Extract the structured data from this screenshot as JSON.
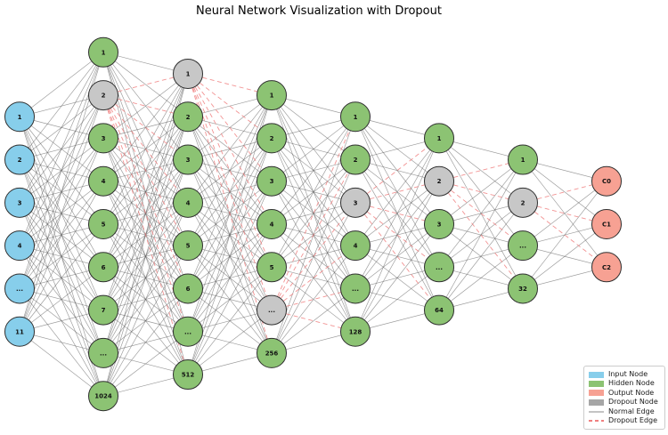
{
  "title": "Neural Network Visualization with Dropout",
  "colors": {
    "input_node": "#87CEEB",
    "hidden_node": "#8CC373",
    "output_node": "#F7A193",
    "dropout_node": "#C7C7C7",
    "node_border": "#2F2F2F",
    "normal_edge": "#5C5C5C",
    "dropout_edge": "#F08080"
  },
  "network": {
    "layers": [
      {
        "name": "input-layer",
        "nodes": [
          {
            "label": "1",
            "type": "input"
          },
          {
            "label": "2",
            "type": "input"
          },
          {
            "label": "3",
            "type": "input"
          },
          {
            "label": "4",
            "type": "input"
          },
          {
            "label": "...",
            "type": "input"
          },
          {
            "label": "11",
            "type": "input"
          }
        ]
      },
      {
        "name": "hidden-layer-1",
        "nodes": [
          {
            "label": "1",
            "type": "hidden"
          },
          {
            "label": "2",
            "type": "dropout"
          },
          {
            "label": "3",
            "type": "hidden"
          },
          {
            "label": "4",
            "type": "hidden"
          },
          {
            "label": "5",
            "type": "hidden"
          },
          {
            "label": "6",
            "type": "hidden"
          },
          {
            "label": "7",
            "type": "hidden"
          },
          {
            "label": "...",
            "type": "hidden"
          },
          {
            "label": "1024",
            "type": "hidden"
          }
        ]
      },
      {
        "name": "hidden-layer-2",
        "nodes": [
          {
            "label": "1",
            "type": "dropout"
          },
          {
            "label": "2",
            "type": "hidden"
          },
          {
            "label": "3",
            "type": "hidden"
          },
          {
            "label": "4",
            "type": "hidden"
          },
          {
            "label": "5",
            "type": "hidden"
          },
          {
            "label": "6",
            "type": "hidden"
          },
          {
            "label": "...",
            "type": "hidden"
          },
          {
            "label": "512",
            "type": "hidden"
          }
        ]
      },
      {
        "name": "hidden-layer-3",
        "nodes": [
          {
            "label": "1",
            "type": "hidden"
          },
          {
            "label": "2",
            "type": "hidden"
          },
          {
            "label": "3",
            "type": "hidden"
          },
          {
            "label": "4",
            "type": "hidden"
          },
          {
            "label": "5",
            "type": "hidden"
          },
          {
            "label": "...",
            "type": "dropout"
          },
          {
            "label": "256",
            "type": "hidden"
          }
        ]
      },
      {
        "name": "hidden-layer-4",
        "nodes": [
          {
            "label": "1",
            "type": "hidden"
          },
          {
            "label": "2",
            "type": "hidden"
          },
          {
            "label": "3",
            "type": "dropout"
          },
          {
            "label": "4",
            "type": "hidden"
          },
          {
            "label": "...",
            "type": "hidden"
          },
          {
            "label": "128",
            "type": "hidden"
          }
        ]
      },
      {
        "name": "hidden-layer-5",
        "nodes": [
          {
            "label": "1",
            "type": "hidden"
          },
          {
            "label": "2",
            "type": "dropout"
          },
          {
            "label": "3",
            "type": "hidden"
          },
          {
            "label": "...",
            "type": "hidden"
          },
          {
            "label": "64",
            "type": "hidden"
          }
        ]
      },
      {
        "name": "hidden-layer-6",
        "nodes": [
          {
            "label": "1",
            "type": "hidden"
          },
          {
            "label": "2",
            "type": "dropout"
          },
          {
            "label": "...",
            "type": "hidden"
          },
          {
            "label": "32",
            "type": "hidden"
          }
        ]
      },
      {
        "name": "output-layer",
        "nodes": [
          {
            "label": "C0",
            "type": "output"
          },
          {
            "label": "C1",
            "type": "output"
          },
          {
            "label": "C2",
            "type": "output"
          }
        ]
      }
    ]
  },
  "legend": {
    "items": [
      {
        "label": "Input Node",
        "swatch": "patch",
        "color": "#87CEEB"
      },
      {
        "label": "Hidden Node",
        "swatch": "patch",
        "color": "#8CC373"
      },
      {
        "label": "Output Node",
        "swatch": "patch",
        "color": "#F7A193"
      },
      {
        "label": "Dropout Node",
        "swatch": "patch",
        "color": "#A6A6A6"
      },
      {
        "label": "Normal Edge",
        "swatch": "line",
        "color": "#C4C4C4"
      },
      {
        "label": "Dropout Edge",
        "swatch": "dashed",
        "color": "#F08080"
      }
    ]
  }
}
